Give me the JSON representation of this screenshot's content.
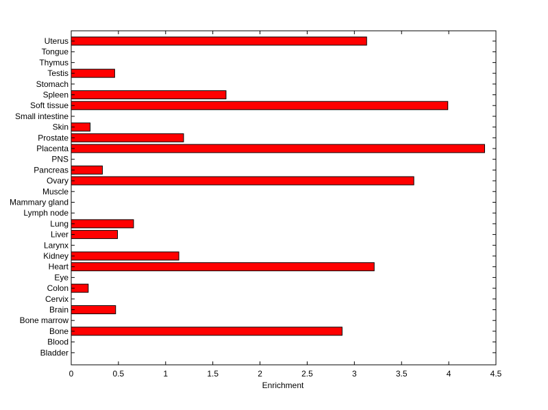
{
  "chart_data": {
    "type": "bar",
    "orientation": "horizontal",
    "title": "",
    "xlabel": "Enrichment",
    "ylabel": "",
    "xlim": [
      0,
      4.5
    ],
    "xticks": [
      0,
      0.5,
      1,
      1.5,
      2,
      2.5,
      3,
      3.5,
      4,
      4.5
    ],
    "xtick_labels": [
      "0",
      "0.5",
      "1",
      "1.5",
      "2",
      "2.5",
      "3",
      "3.5",
      "4",
      "4.5"
    ],
    "grid": false,
    "legend": "none",
    "bar_color": "#ff0000",
    "edge_color": "#000000",
    "categories": [
      "Bladder",
      "Blood",
      "Bone",
      "Bone marrow",
      "Brain",
      "Cervix",
      "Colon",
      "Eye",
      "Heart",
      "Kidney",
      "Larynx",
      "Liver",
      "Lung",
      "Lymph node",
      "Mammary gland",
      "Muscle",
      "Ovary",
      "Pancreas",
      "PNS",
      "Placenta",
      "Prostate",
      "Skin",
      "Small intestine",
      "Soft tissue",
      "Spleen",
      "Stomach",
      "Testis",
      "Thymus",
      "Tongue",
      "Uterus"
    ],
    "values": [
      0,
      0,
      2.87,
      0,
      0.47,
      0,
      0.18,
      0,
      3.21,
      1.14,
      0,
      0.49,
      0.66,
      0,
      0,
      0,
      3.63,
      0.33,
      0,
      4.38,
      1.19,
      0.2,
      0,
      3.99,
      1.64,
      0,
      0.46,
      0,
      0,
      3.13
    ]
  }
}
